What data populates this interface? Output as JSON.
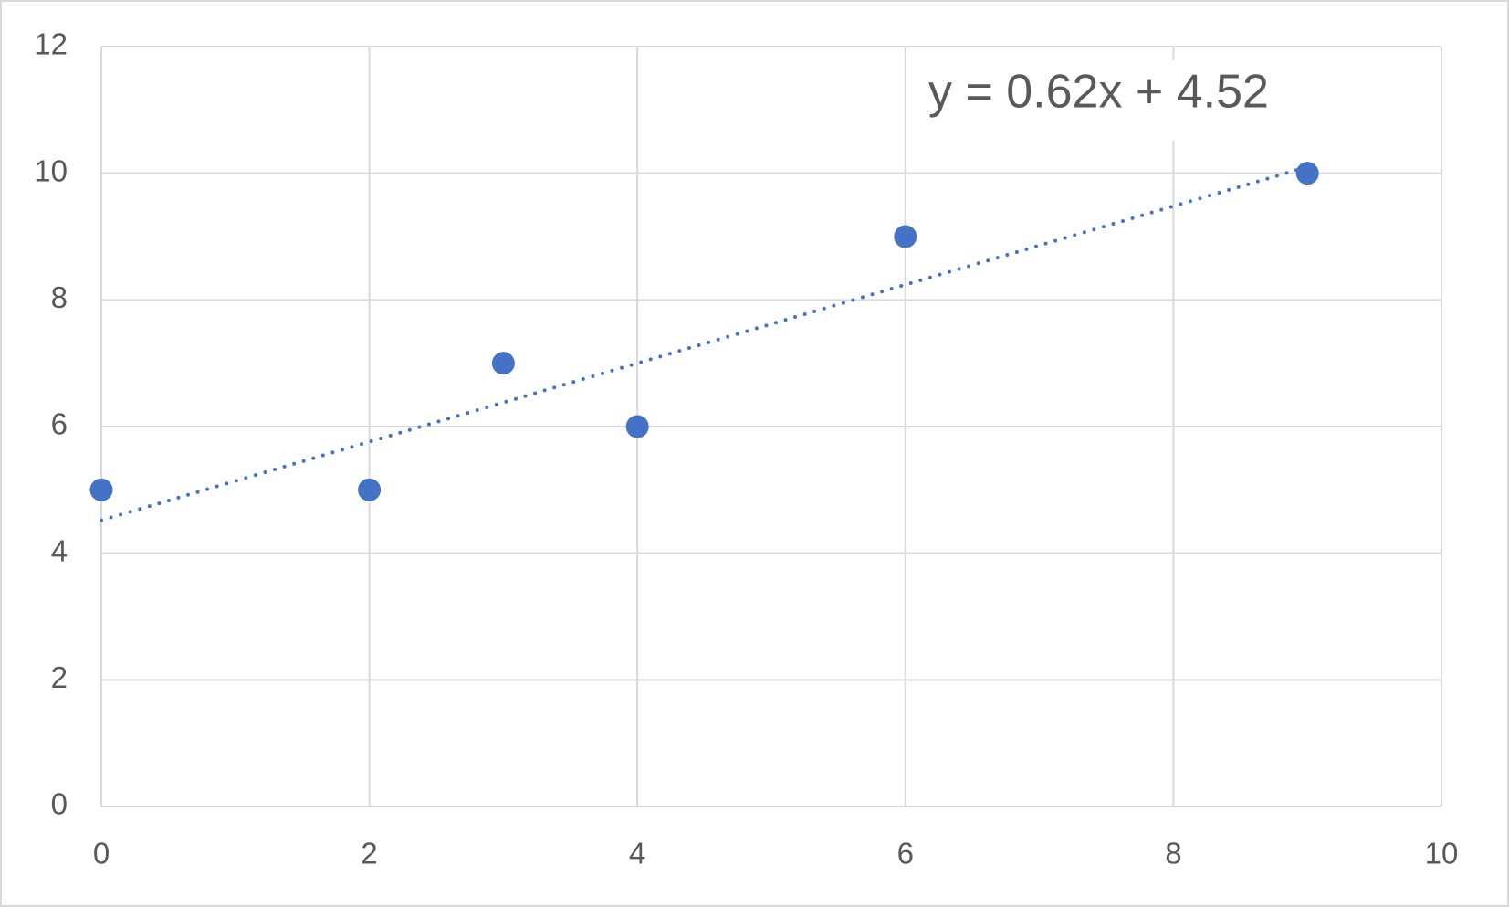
{
  "chart_data": {
    "type": "scatter",
    "x": [
      0,
      2,
      3,
      4,
      6,
      9
    ],
    "values": [
      5,
      5,
      7,
      6,
      9,
      10
    ],
    "color": "#4472c4",
    "xlim": [
      0,
      10
    ],
    "xticks": [
      0,
      2,
      4,
      6,
      8,
      10
    ],
    "ylim": [
      0,
      12
    ],
    "yticks": [
      0,
      2,
      4,
      6,
      8,
      10,
      12
    ],
    "grid": true,
    "trendline": {
      "label": "y = 0.62x + 4.52",
      "slope": 0.62,
      "intercept": 4.52,
      "style": "dotted"
    }
  }
}
